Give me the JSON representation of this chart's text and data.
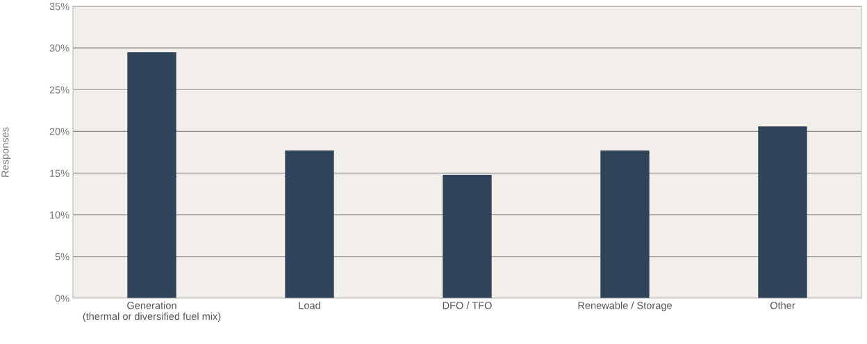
{
  "chart_data": {
    "type": "bar",
    "ylabel": "Responses",
    "categories": [
      "Generation\n(thermal or diversified fuel mix)",
      "Load",
      "DFO / TFO",
      "Renewable / Storage",
      "Other"
    ],
    "values": [
      29.5,
      17.7,
      14.8,
      17.7,
      20.6
    ],
    "color": "#2f4459",
    "ylim": [
      0,
      35
    ],
    "yticks": [
      {
        "value": 0,
        "label": "0%"
      },
      {
        "value": 5,
        "label": "5%"
      },
      {
        "value": 10,
        "label": "10%"
      },
      {
        "value": 15,
        "label": "15%"
      },
      {
        "value": 20,
        "label": "20%"
      },
      {
        "value": 25,
        "label": "25%"
      },
      {
        "value": 30,
        "label": "30%"
      },
      {
        "value": 35,
        "label": "35%"
      }
    ],
    "grid": "y"
  }
}
